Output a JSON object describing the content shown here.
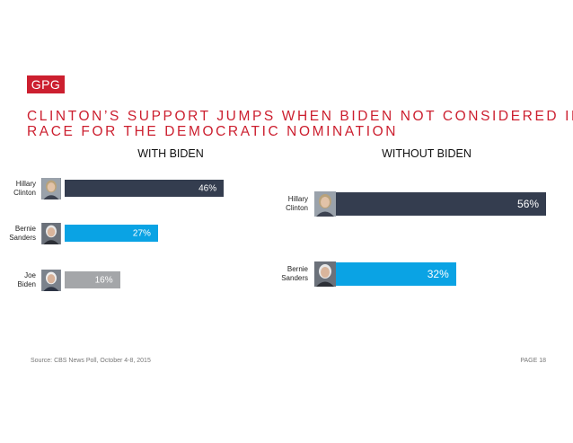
{
  "logo": "GPG",
  "title_lines": [
    "CLINTON’S SUPPORT JUMPS WHEN BIDEN NOT CONSIDERED IN",
    "RACE FOR THE DEMOCRATIC NOMINATION"
  ],
  "footer": {
    "source": "Source: CBS News Poll, October 4-8, 2015",
    "page": "PAGE 18"
  },
  "colors": {
    "accent": "#cc1f2f",
    "clinton": "#343d4f",
    "sanders": "#0aa3e4",
    "biden": "#a4a6a9"
  },
  "chart_data": [
    {
      "type": "bar",
      "title": "WITH BIDEN",
      "xlim": [
        0,
        100
      ],
      "categories": [
        [
          "Hillary",
          "Clinton"
        ],
        [
          "Bernie",
          "Sanders"
        ],
        [
          "Joe",
          "Biden"
        ]
      ],
      "values": [
        46,
        27,
        16
      ],
      "labels": [
        "46%",
        "27%",
        "16%"
      ],
      "bar_colors": [
        "#343d4f",
        "#0aa3e4",
        "#a4a6a9"
      ],
      "icons": [
        "clinton-photo-icon",
        "sanders-photo-icon",
        "biden-photo-icon"
      ]
    },
    {
      "type": "bar",
      "title": "WITHOUT BIDEN",
      "xlim": [
        0,
        100
      ],
      "categories": [
        [
          "Hillary",
          "Clinton"
        ],
        [
          "Bernie",
          "Sanders"
        ]
      ],
      "values": [
        56,
        32
      ],
      "labels": [
        "56%",
        "32%"
      ],
      "bar_colors": [
        "#343d4f",
        "#0aa3e4"
      ],
      "icons": [
        "clinton-photo-icon",
        "sanders-photo-icon"
      ]
    }
  ]
}
